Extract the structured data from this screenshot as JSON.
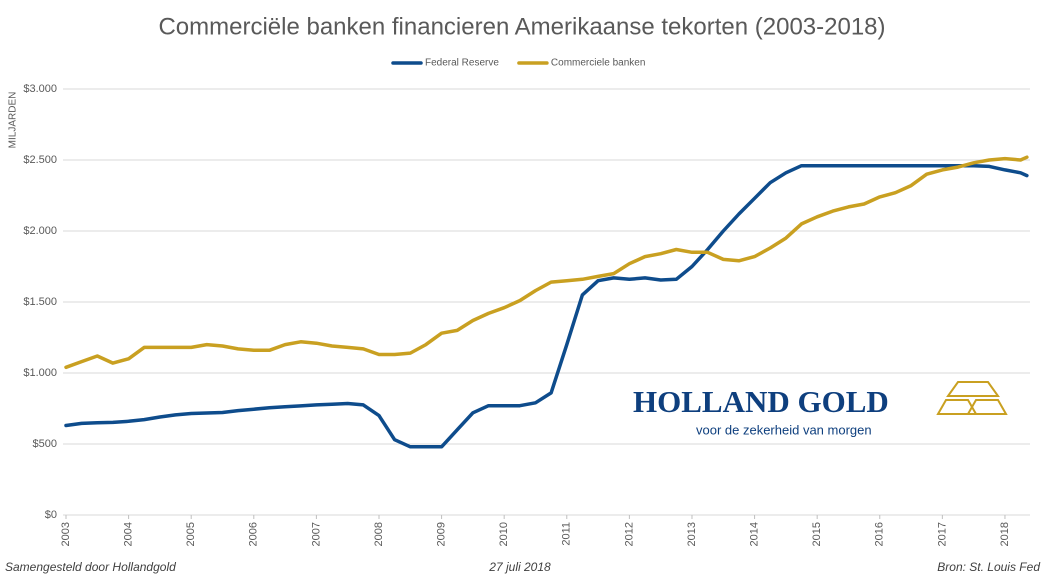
{
  "chart_data": {
    "type": "line",
    "title": "Commerciële banken financieren Amerikaanse tekorten (2003-2018)",
    "y_label": "MILJARDEN",
    "x": [
      2003,
      2003.25,
      2003.5,
      2003.75,
      2004,
      2004.25,
      2004.5,
      2004.75,
      2005,
      2005.25,
      2005.5,
      2005.75,
      2006,
      2006.25,
      2006.5,
      2006.75,
      2007,
      2007.25,
      2007.5,
      2007.75,
      2008,
      2008.25,
      2008.5,
      2008.75,
      2009,
      2009.25,
      2009.5,
      2009.75,
      2010,
      2010.25,
      2010.5,
      2010.75,
      2011,
      2011.25,
      2011.5,
      2011.75,
      2012,
      2012.25,
      2012.5,
      2012.75,
      2013,
      2013.25,
      2013.5,
      2013.75,
      2014,
      2014.25,
      2014.5,
      2014.75,
      2015,
      2015.25,
      2015.5,
      2015.75,
      2016,
      2016.25,
      2016.5,
      2016.75,
      2017,
      2017.25,
      2017.5,
      2017.75,
      2018,
      2018.25,
      2018.35
    ],
    "series": [
      {
        "name": "Federal Reserve",
        "color": "#0e4c8c",
        "values": [
          630,
          645,
          650,
          652,
          660,
          672,
          690,
          705,
          715,
          718,
          722,
          735,
          745,
          755,
          762,
          768,
          775,
          780,
          785,
          775,
          700,
          530,
          480,
          480,
          480,
          600,
          720,
          770,
          770,
          770,
          790,
          860,
          1200,
          1550,
          1650,
          1670,
          1660,
          1670,
          1655,
          1660,
          1750,
          1870,
          2000,
          2120,
          2230,
          2340,
          2410,
          2460,
          2460,
          2460,
          2460,
          2460,
          2460,
          2460,
          2460,
          2460,
          2460,
          2460,
          2460,
          2455,
          2430,
          2410,
          2390
        ]
      },
      {
        "name": "Commerciele banken",
        "color": "#c9a021",
        "values": [
          1040,
          1080,
          1120,
          1070,
          1100,
          1180,
          1180,
          1180,
          1180,
          1200,
          1190,
          1170,
          1160,
          1160,
          1200,
          1220,
          1210,
          1190,
          1180,
          1170,
          1130,
          1130,
          1140,
          1200,
          1280,
          1300,
          1370,
          1420,
          1460,
          1510,
          1580,
          1640,
          1650,
          1660,
          1680,
          1700,
          1770,
          1820,
          1840,
          1870,
          1850,
          1850,
          1800,
          1790,
          1820,
          1880,
          1950,
          2050,
          2100,
          2140,
          2170,
          2190,
          2240,
          2270,
          2320,
          2400,
          2430,
          2450,
          2480,
          2500,
          2510,
          2500,
          2520
        ]
      }
    ],
    "xlim": [
      2003,
      2018.4
    ],
    "xticks": [
      2003,
      2004,
      2005,
      2006,
      2007,
      2008,
      2009,
      2010,
      2011,
      2012,
      2013,
      2014,
      2015,
      2016,
      2017,
      2018
    ],
    "ylim": [
      0,
      3000
    ],
    "yticks": [
      {
        "value": 0,
        "label": "$0"
      },
      {
        "value": 500,
        "label": "$500"
      },
      {
        "value": 1000,
        "label": "$1.000"
      },
      {
        "value": 1500,
        "label": "$1.500"
      },
      {
        "value": 2000,
        "label": "$2.000"
      },
      {
        "value": 2500,
        "label": "$2.500"
      },
      {
        "value": 3000,
        "label": "$3.000"
      }
    ],
    "grid": true,
    "legend": "top",
    "logo": {
      "name": "HOLLAND GOLD",
      "tagline": "voor de zekerheid van morgen"
    },
    "footer": {
      "left": "Samengesteld door Hollandgold",
      "center": "27 juli 2018",
      "right": "Bron: St. Louis Fed"
    }
  }
}
